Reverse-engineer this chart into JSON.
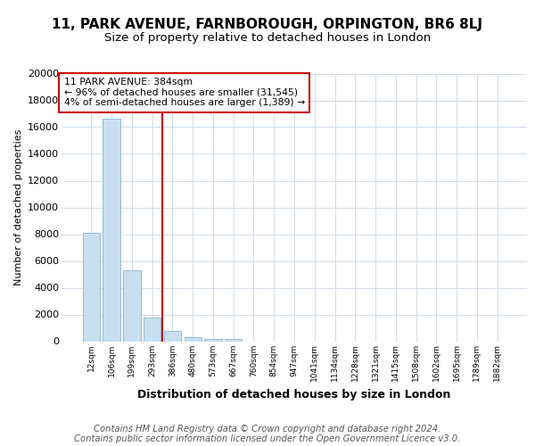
{
  "title1": "11, PARK AVENUE, FARNBOROUGH, ORPINGTON, BR6 8LJ",
  "title2": "Size of property relative to detached houses in London",
  "xlabel": "Distribution of detached houses by size in London",
  "ylabel": "Number of detached properties",
  "categories": [
    "12sqm",
    "106sqm",
    "199sqm",
    "293sqm",
    "386sqm",
    "480sqm",
    "573sqm",
    "667sqm",
    "760sqm",
    "854sqm",
    "947sqm",
    "1041sqm",
    "1134sqm",
    "1228sqm",
    "1321sqm",
    "1415sqm",
    "1508sqm",
    "1602sqm",
    "1695sqm",
    "1789sqm",
    "1882sqm"
  ],
  "values": [
    8100,
    16600,
    5300,
    1800,
    750,
    300,
    200,
    200,
    0,
    0,
    0,
    0,
    0,
    0,
    0,
    0,
    0,
    0,
    0,
    0,
    0
  ],
  "bar_color": "#c8dff0",
  "bar_edge_color": "#8ab4d0",
  "vline_color": "#cc0000",
  "annotation_line1": "11 PARK AVENUE: 384sqm",
  "annotation_line2": "← 96% of detached houses are smaller (31,545)",
  "annotation_line3": "4% of semi-detached houses are larger (1,389) →",
  "annotation_box_color": "#cc0000",
  "ylim": [
    0,
    20000
  ],
  "yticks": [
    0,
    2000,
    4000,
    6000,
    8000,
    10000,
    12000,
    14000,
    16000,
    18000,
    20000
  ],
  "footer_line1": "Contains HM Land Registry data © Crown copyright and database right 2024.",
  "footer_line2": "Contains public sector information licensed under the Open Government Licence v3.0.",
  "bg_color": "#ffffff",
  "plot_bg_color": "#ffffff",
  "grid_color": "#d0dce8",
  "title1_fontsize": 11,
  "title2_fontsize": 9.5,
  "footer_fontsize": 7.2
}
